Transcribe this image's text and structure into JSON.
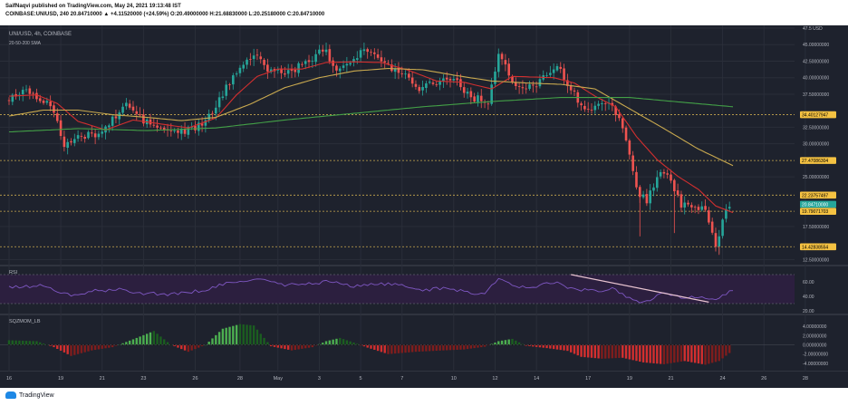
{
  "header": {
    "published_line": "SaifNaqvi published on TradingView.com, May 24, 2021 19:13:48 IST",
    "symbol_line": "COINBASE:UNIUSD, 240  20.84710000 ▲ +4.11520000 (+24.59%) O:20.49000000 H:21.68830000 L:20.25180000 C:20.84710000"
  },
  "footer": {
    "brand": "TradingView"
  },
  "colors": {
    "bg": "#1e222d",
    "grid": "#2a2e39",
    "text": "#b2b5be",
    "up": "#26a69a",
    "down": "#ef5350",
    "ma20": "#d32f2f",
    "ma50": "#c9a94f",
    "ma200": "#43a047",
    "hline": "#c9a94f",
    "rsi": "#7e57c2",
    "rsi_band": "#2c1f3f",
    "mom_up": "#4caf50",
    "mom_down": "#d32f2f"
  },
  "chart_data": {
    "type": "candlestick",
    "title": "UNI/USD, 4h, COINBASE",
    "indicator_label": "20-50-200 SMA",
    "ylim": [
      12.0,
      47.5
    ],
    "y_ticks": [
      {
        "v": 47.5,
        "label": "47.5 USD"
      },
      {
        "v": 45.0,
        "label": "45.00000000"
      },
      {
        "v": 42.5,
        "label": "42.50000000"
      },
      {
        "v": 40.0,
        "label": "40.00000000"
      },
      {
        "v": 37.5,
        "label": "37.50000000"
      },
      {
        "v": 32.5,
        "label": "32.50000000"
      },
      {
        "v": 30.0,
        "label": "30.00000000"
      },
      {
        "v": 25.0,
        "label": "25.00000000"
      },
      {
        "v": 17.5,
        "label": "17.50000000"
      },
      {
        "v": 12.5,
        "label": "12.50000000"
      }
    ],
    "price_levels": [
      {
        "v": 34.40127947,
        "label": "34.40127947",
        "color": "#f5c242"
      },
      {
        "v": 27.47086304,
        "label": "27.47086304",
        "color": "#f5c242"
      },
      {
        "v": 22.23757497,
        "label": "22.23757497",
        "color": "#f5c242"
      },
      {
        "v": 20.8471,
        "label": "20.84710000",
        "color": "#26a69a"
      },
      {
        "v": 19.79071703,
        "label": "19.79071703",
        "color": "#f5c242"
      },
      {
        "v": 14.42838554,
        "label": "14.42838554",
        "color": "#f5c242"
      }
    ],
    "x_ticks": [
      "16",
      "19",
      "21",
      "23",
      "26",
      "28",
      "May",
      "3",
      "5",
      "7",
      "10",
      "12",
      "14",
      "17",
      "19",
      "21",
      "24",
      "26",
      "28"
    ],
    "x_tick_index": [
      0,
      15,
      27,
      39,
      54,
      67,
      78,
      90,
      102,
      114,
      129,
      141,
      153,
      168,
      180,
      192,
      207,
      219,
      231
    ],
    "candle_count": 210,
    "series": [
      {
        "name": "price",
        "anchors": [
          [
            0,
            36.5
          ],
          [
            6,
            38.3
          ],
          [
            13,
            35.8
          ],
          [
            17,
            30.0
          ],
          [
            22,
            31.0
          ],
          [
            28,
            31.8
          ],
          [
            35,
            36.0
          ],
          [
            40,
            33.5
          ],
          [
            46,
            32.0
          ],
          [
            52,
            31.8
          ],
          [
            58,
            33.2
          ],
          [
            63,
            37.5
          ],
          [
            68,
            42.0
          ],
          [
            72,
            43.3
          ],
          [
            77,
            41.0
          ],
          [
            82,
            40.8
          ],
          [
            88,
            42.5
          ],
          [
            92,
            44.5
          ],
          [
            96,
            41.5
          ],
          [
            100,
            42.5
          ],
          [
            104,
            44.5
          ],
          [
            110,
            42.0
          ],
          [
            115,
            40.8
          ],
          [
            120,
            38.5
          ],
          [
            125,
            39.5
          ],
          [
            130,
            40.0
          ],
          [
            135,
            37.0
          ],
          [
            140,
            36.5
          ],
          [
            143,
            43.5
          ],
          [
            148,
            38.5
          ],
          [
            153,
            38.5
          ],
          [
            156,
            40.5
          ],
          [
            160,
            41.8
          ],
          [
            164,
            38.0
          ],
          [
            168,
            35.5
          ],
          [
            172,
            35.5
          ],
          [
            176,
            36.2
          ],
          [
            180,
            31.0
          ],
          [
            183,
            23.0
          ],
          [
            186,
            21.5
          ],
          [
            190,
            26.0
          ],
          [
            193,
            24.5
          ],
          [
            196,
            20.5
          ],
          [
            200,
            21.0
          ],
          [
            203,
            19.5
          ],
          [
            206,
            14.5
          ],
          [
            208,
            18.5
          ],
          [
            210,
            20.8
          ]
        ]
      },
      {
        "name": "SMA 20",
        "color": "#d32f2f",
        "anchors": [
          [
            0,
            37.2
          ],
          [
            8,
            37.4
          ],
          [
            14,
            36.1
          ],
          [
            20,
            33.4
          ],
          [
            28,
            32.1
          ],
          [
            36,
            33.6
          ],
          [
            44,
            33.0
          ],
          [
            52,
            32.4
          ],
          [
            60,
            33.9
          ],
          [
            66,
            37.4
          ],
          [
            72,
            40.2
          ],
          [
            78,
            41.3
          ],
          [
            85,
            41.3
          ],
          [
            92,
            42.3
          ],
          [
            100,
            42.4
          ],
          [
            108,
            42.3
          ],
          [
            116,
            41.1
          ],
          [
            124,
            39.5
          ],
          [
            132,
            39.3
          ],
          [
            140,
            38.3
          ],
          [
            146,
            40.2
          ],
          [
            152,
            40.1
          ],
          [
            158,
            40.0
          ],
          [
            164,
            39.2
          ],
          [
            170,
            37.2
          ],
          [
            176,
            35.6
          ],
          [
            182,
            31.1
          ],
          [
            188,
            27.6
          ],
          [
            194,
            25.1
          ],
          [
            200,
            23.1
          ],
          [
            205,
            20.6
          ],
          [
            210,
            19.6
          ]
        ]
      },
      {
        "name": "SMA 50",
        "color": "#c9a94f",
        "anchors": [
          [
            0,
            34.2
          ],
          [
            10,
            35.1
          ],
          [
            20,
            35.1
          ],
          [
            30,
            34.4
          ],
          [
            40,
            34.0
          ],
          [
            50,
            33.5
          ],
          [
            60,
            34.0
          ],
          [
            70,
            36.0
          ],
          [
            80,
            38.5
          ],
          [
            90,
            40.0
          ],
          [
            100,
            41.0
          ],
          [
            110,
            41.4
          ],
          [
            120,
            41.2
          ],
          [
            130,
            40.3
          ],
          [
            140,
            39.5
          ],
          [
            150,
            39.2
          ],
          [
            160,
            39.0
          ],
          [
            170,
            38.3
          ],
          [
            180,
            35.3
          ],
          [
            190,
            32.3
          ],
          [
            200,
            29.2
          ],
          [
            210,
            26.7
          ]
        ]
      },
      {
        "name": "SMA 200",
        "color": "#43a047",
        "anchors": [
          [
            0,
            31.8
          ],
          [
            20,
            32.3
          ],
          [
            40,
            32.0
          ],
          [
            60,
            32.4
          ],
          [
            80,
            33.6
          ],
          [
            100,
            34.6
          ],
          [
            120,
            35.6
          ],
          [
            140,
            36.4
          ],
          [
            160,
            37.0
          ],
          [
            180,
            37.0
          ],
          [
            195,
            36.3
          ],
          [
            210,
            35.6
          ]
        ]
      }
    ],
    "rsi": {
      "label": "RSI",
      "ylim": [
        20,
        80
      ],
      "band": [
        30,
        70
      ],
      "y_ticks": [
        {
          "v": 60,
          "label": "60.00"
        },
        {
          "v": 40,
          "label": "40.00"
        },
        {
          "v": 20,
          "label": "20.00"
        }
      ],
      "anchors": [
        [
          0,
          52
        ],
        [
          10,
          55
        ],
        [
          18,
          40
        ],
        [
          24,
          47
        ],
        [
          32,
          49
        ],
        [
          40,
          44
        ],
        [
          48,
          43
        ],
        [
          56,
          48
        ],
        [
          62,
          56
        ],
        [
          68,
          62
        ],
        [
          74,
          63
        ],
        [
          80,
          55
        ],
        [
          88,
          58
        ],
        [
          94,
          61
        ],
        [
          100,
          53
        ],
        [
          106,
          58
        ],
        [
          112,
          56
        ],
        [
          120,
          49
        ],
        [
          128,
          51
        ],
        [
          134,
          45
        ],
        [
          138,
          44
        ],
        [
          142,
          64
        ],
        [
          148,
          52
        ],
        [
          154,
          55
        ],
        [
          158,
          60
        ],
        [
          164,
          49
        ],
        [
          170,
          48
        ],
        [
          176,
          50
        ],
        [
          180,
          37
        ],
        [
          184,
          32
        ],
        [
          190,
          45
        ],
        [
          196,
          36
        ],
        [
          200,
          40
        ],
        [
          205,
          33
        ],
        [
          210,
          50
        ]
      ],
      "trendline": [
        [
          163,
          70
        ],
        [
          203,
          32
        ]
      ]
    },
    "momentum": {
      "label": "SQZMOM_LB",
      "ylim": [
        -5,
        6
      ],
      "y_ticks": [
        {
          "v": 4,
          "label": "4.00000000"
        },
        {
          "v": 2,
          "label": "2.00000000"
        },
        {
          "v": 0,
          "label": "0.00000000"
        },
        {
          "v": -2,
          "label": "-2.00000000"
        },
        {
          "v": -4,
          "label": "-4.00000000"
        }
      ],
      "anchors": [
        [
          0,
          1.0
        ],
        [
          8,
          0.8
        ],
        [
          13,
          -0.5
        ],
        [
          18,
          -2.4
        ],
        [
          24,
          -1.2
        ],
        [
          30,
          -0.5
        ],
        [
          36,
          1.2
        ],
        [
          42,
          3.0
        ],
        [
          47,
          0.0
        ],
        [
          52,
          -1.5
        ],
        [
          57,
          0.0
        ],
        [
          62,
          3.5
        ],
        [
          67,
          4.5
        ],
        [
          71,
          4.2
        ],
        [
          76,
          -0.3
        ],
        [
          82,
          -1.2
        ],
        [
          88,
          -0.5
        ],
        [
          92,
          0.8
        ],
        [
          96,
          1.5
        ],
        [
          100,
          0.5
        ],
        [
          104,
          -0.6
        ],
        [
          110,
          -2.0
        ],
        [
          118,
          -1.5
        ],
        [
          126,
          -1.2
        ],
        [
          132,
          -1.0
        ],
        [
          138,
          -0.4
        ],
        [
          142,
          0.8
        ],
        [
          146,
          1.3
        ],
        [
          150,
          -0.2
        ],
        [
          156,
          -0.7
        ],
        [
          162,
          -1.3
        ],
        [
          166,
          -2.6
        ],
        [
          172,
          -3.0
        ],
        [
          178,
          -2.8
        ],
        [
          184,
          -3.8
        ],
        [
          190,
          -4.2
        ],
        [
          196,
          -3.5
        ],
        [
          202,
          -4.3
        ],
        [
          206,
          -3.5
        ],
        [
          210,
          -1.2
        ]
      ]
    }
  }
}
